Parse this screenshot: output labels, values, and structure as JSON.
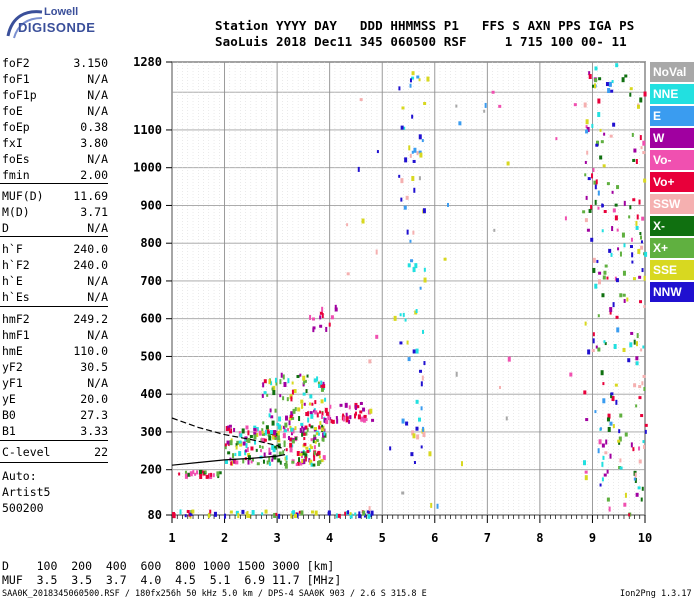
{
  "logo": {
    "line1": "Lowell",
    "line2": "DIGISONDE"
  },
  "header": {
    "line1": "Station YYYY DAY   DDD HHMMSS P1   FFS S AXN PPS IGA PS",
    "line2": "SaoLuis 2018 Dec11 345 060500 RSF     1 715 100 00- 11"
  },
  "params": [
    {
      "label": "foF2",
      "value": "3.150"
    },
    {
      "label": "foF1",
      "value": "N/A"
    },
    {
      "label": "foF1p",
      "value": "N/A"
    },
    {
      "label": "foE",
      "value": "N/A"
    },
    {
      "label": "foEp",
      "value": "0.38"
    },
    {
      "label": "fxI",
      "value": "3.80"
    },
    {
      "label": "foEs",
      "value": "N/A"
    },
    {
      "label": "fmin",
      "value": "2.00"
    },
    {
      "label": "MUF(D)",
      "value": "11.69"
    },
    {
      "label": "M(D)",
      "value": "3.71"
    },
    {
      "label": "D",
      "value": "N/A"
    },
    {
      "label": "h`F",
      "value": "240.0"
    },
    {
      "label": "h`F2",
      "value": "240.0"
    },
    {
      "label": "h`E",
      "value": "N/A"
    },
    {
      "label": "h`Es",
      "value": "N/A"
    },
    {
      "label": "hmF2",
      "value": "249.2"
    },
    {
      "label": "hmF1",
      "value": "N/A"
    },
    {
      "label": "hmE",
      "value": "110.0"
    },
    {
      "label": "yF2",
      "value": "30.5"
    },
    {
      "label": "yF1",
      "value": "N/A"
    },
    {
      "label": "yE",
      "value": "20.0"
    },
    {
      "label": "B0",
      "value": "27.3"
    },
    {
      "label": "B1",
      "value": "3.33"
    },
    {
      "label": "C-level",
      "value": "22"
    }
  ],
  "artist": {
    "line1": "Auto:",
    "line2": "Artist5",
    "line3": "500200"
  },
  "legend": [
    {
      "label": "NoVal",
      "color": "#a8a8a8"
    },
    {
      "label": "NNE",
      "color": "#22e0e0"
    },
    {
      "label": "E",
      "color": "#3a9cf0"
    },
    {
      "label": "W",
      "color": "#a000a0"
    },
    {
      "label": "Vo-",
      "color": "#f050b0"
    },
    {
      "label": "Vo+",
      "color": "#e8003a"
    },
    {
      "label": "SSW",
      "color": "#f5b0b0"
    },
    {
      "label": "X-",
      "color": "#107010"
    },
    {
      "label": "X+",
      "color": "#60b040"
    },
    {
      "label": "SSE",
      "color": "#d8d820"
    },
    {
      "label": "NNW",
      "color": "#2010d0"
    }
  ],
  "footer": {
    "d_line": "D    100  200  400  600  800 1000 1500 3000 [km]",
    "muf_line": "MUF  3.5  3.5  3.7  4.0  4.5  5.1  6.9 11.7 [MHz]",
    "source": "SAA0K_2018345060500.RSF / 180fx256h 50 kHz 5.0 km / DPS-4 SAA0K 903 / 2.6 S 315.8 E",
    "version": "Ion2Png 1.3.17"
  },
  "chart_data": {
    "type": "scatter",
    "xlim": [
      1,
      10
    ],
    "ylim": [
      80,
      1280
    ],
    "x_ticks": [
      1,
      2,
      3,
      4,
      5,
      6,
      7,
      8,
      9,
      10
    ],
    "y_ticks": [
      80,
      200,
      300,
      400,
      500,
      600,
      700,
      800,
      900,
      1000,
      1100,
      1280
    ],
    "y_gridlines": [
      80,
      200,
      300,
      400,
      500,
      600,
      700,
      800,
      900,
      1000,
      1100,
      1200,
      1280
    ],
    "grid": true,
    "trace_ordinary": {
      "x": [
        1.0,
        1.5,
        2.0,
        2.5,
        3.0,
        3.15
      ],
      "y": [
        212,
        219,
        226,
        230,
        236,
        240
      ]
    },
    "trace_profile": {
      "x": [
        1.0,
        1.5,
        2.0,
        2.5,
        3.0,
        3.15
      ],
      "y": [
        337,
        312,
        293,
        280,
        264,
        252
      ]
    },
    "echo_clusters": [
      {
        "x0": 1.0,
        "x1": 2.05,
        "y0": 186,
        "y1": 200,
        "n": 25,
        "colors": [
          "#107010",
          "#60b040",
          "#e8003a",
          "#f050b0"
        ]
      },
      {
        "x0": 2.0,
        "x1": 3.9,
        "y0": 215,
        "y1": 320,
        "n": 210,
        "colors": [
          "#e8003a",
          "#f050b0",
          "#107010",
          "#60b040",
          "#d8d820",
          "#a000a0",
          "#22e0e0"
        ]
      },
      {
        "x0": 2.7,
        "x1": 3.9,
        "y0": 300,
        "y1": 460,
        "n": 110,
        "colors": [
          "#e8003a",
          "#d8d820",
          "#60b040",
          "#107010",
          "#22e0e0",
          "#a000a0"
        ]
      },
      {
        "x0": 3.6,
        "x1": 4.8,
        "y0": 330,
        "y1": 380,
        "n": 45,
        "colors": [
          "#a000a0",
          "#e8003a",
          "#f050b0"
        ]
      },
      {
        "x0": 3.6,
        "x1": 4.2,
        "y0": 560,
        "y1": 640,
        "n": 14,
        "colors": [
          "#a000a0",
          "#e8003a",
          "#f050b0"
        ]
      },
      {
        "x0": 1.0,
        "x1": 4.8,
        "y0": 82,
        "y1": 95,
        "n": 60,
        "colors": [
          "#22e0e0",
          "#60b040",
          "#e8003a",
          "#2010d0",
          "#d8d820"
        ]
      },
      {
        "x0": 5.3,
        "x1": 5.8,
        "y0": 220,
        "y1": 1260,
        "n": 70,
        "colors": [
          "#d8d820",
          "#22e0e0",
          "#3a9cf0",
          "#f5b0b0",
          "#2010d0"
        ]
      },
      {
        "x0": 8.8,
        "x1": 10.0,
        "y0": 82,
        "y1": 1280,
        "n": 230,
        "colors": [
          "#2010d0",
          "#a000a0",
          "#e8003a",
          "#f050b0",
          "#d8d820",
          "#107010",
          "#60b040",
          "#3a9cf0",
          "#22e0e0",
          "#f5b0b0"
        ]
      },
      {
        "x0": 4.3,
        "x1": 8.7,
        "y0": 100,
        "y1": 1260,
        "n": 40,
        "colors": [
          "#a8a8a8",
          "#f5b0b0",
          "#2010d0",
          "#d8d820",
          "#f050b0",
          "#3a9cf0"
        ]
      }
    ]
  }
}
